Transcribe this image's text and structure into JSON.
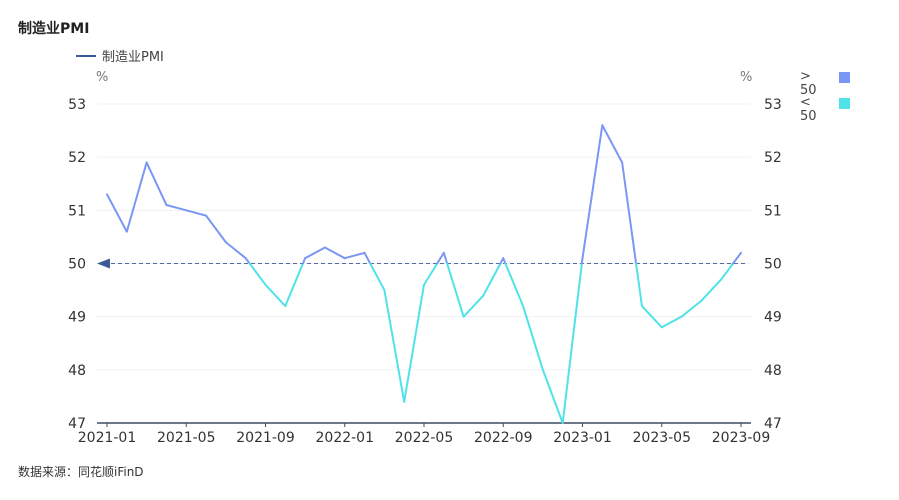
{
  "title": "制造业PMI",
  "legend": {
    "series_label": "制造业PMI"
  },
  "side_legend": {
    "above": {
      "label": "> 50",
      "color": "#7b97f5"
    },
    "below": {
      "label": "< 50",
      "color": "#4fe3e8"
    }
  },
  "source": "数据来源：同花顺iFinD",
  "colors": {
    "above": "#7b97f5",
    "below": "#4fe3e8",
    "axis": "#3d4a66",
    "grid": "#eef0f5",
    "reference": "#5a6a9a"
  },
  "chart_data": {
    "type": "line",
    "title": "制造业PMI",
    "series": [
      {
        "name": "制造业PMI",
        "x": [
          "2021-01",
          "2021-02",
          "2021-03",
          "2021-04",
          "2021-05",
          "2021-06",
          "2021-07",
          "2021-08",
          "2021-09",
          "2021-10",
          "2021-11",
          "2021-12",
          "2022-01",
          "2022-02",
          "2022-03",
          "2022-04",
          "2022-05",
          "2022-06",
          "2022-07",
          "2022-08",
          "2022-09",
          "2022-10",
          "2022-11",
          "2022-12",
          "2023-01",
          "2023-02",
          "2023-03",
          "2023-04",
          "2023-05",
          "2023-06",
          "2023-07",
          "2023-08",
          "2023-09"
        ],
        "values": [
          51.3,
          50.6,
          51.9,
          51.1,
          51.0,
          50.9,
          50.4,
          50.1,
          49.6,
          49.2,
          50.1,
          50.3,
          50.1,
          50.2,
          49.5,
          47.4,
          49.6,
          50.2,
          49.0,
          49.4,
          50.1,
          49.2,
          48.0,
          47.0,
          50.1,
          52.6,
          51.9,
          49.2,
          48.8,
          49.0,
          49.3,
          49.7,
          50.2
        ]
      }
    ],
    "x_tick_labels": [
      "2021-01",
      "2021-05",
      "2021-09",
      "2022-01",
      "2022-05",
      "2022-09",
      "2023-01",
      "2023-05",
      "2023-09"
    ],
    "y_ticks": [
      47,
      48,
      49,
      50,
      51,
      52,
      53
    ],
    "ylim": [
      47,
      53
    ],
    "y_unit_left": "%",
    "y_unit_right": "%",
    "reference_line": 50,
    "threshold_coloring": {
      "threshold": 50,
      "above_label": "> 50",
      "below_label": "< 50"
    },
    "grid": true,
    "legend_position": "top-left"
  }
}
